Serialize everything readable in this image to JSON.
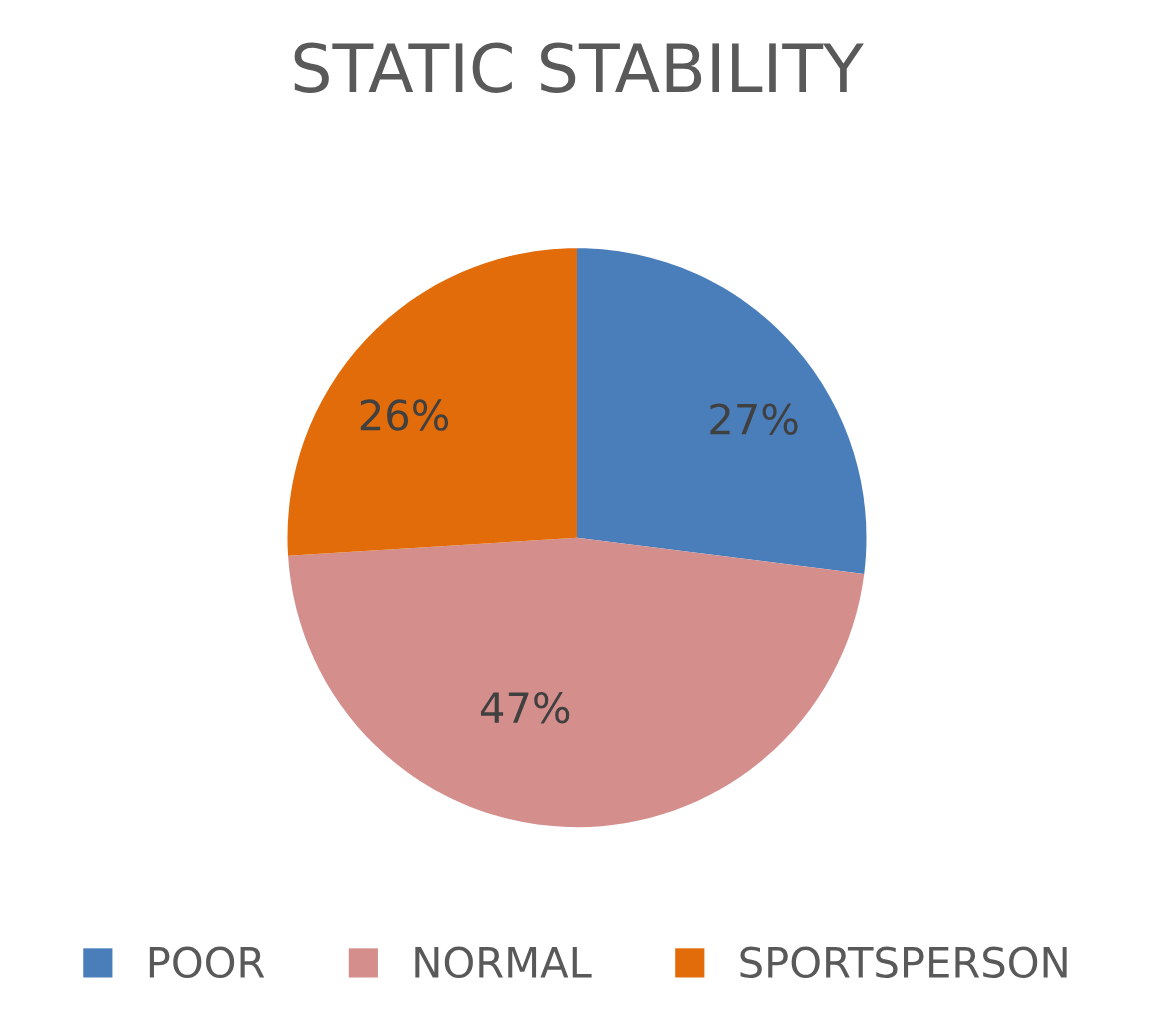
{
  "chart_data": {
    "type": "pie",
    "title": "STATIC STABILITY",
    "categories": [
      "POOR",
      "NORMAL",
      "SPORTSPERSON"
    ],
    "values": [
      27,
      47,
      26
    ],
    "colors": [
      "#4a7ebb",
      "#d48f8d",
      "#e26b0a"
    ],
    "value_labels": [
      "27%",
      "47%",
      "26%"
    ],
    "legend": "bottom"
  }
}
